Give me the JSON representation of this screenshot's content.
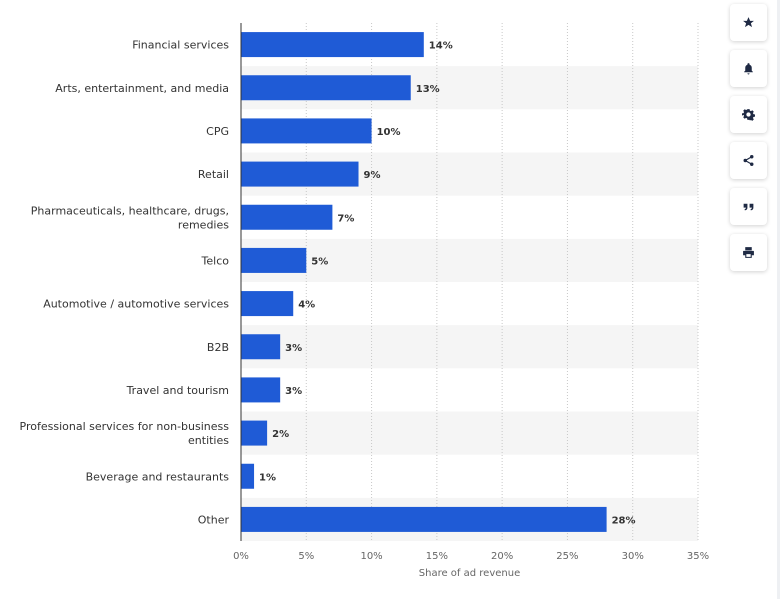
{
  "colors": {
    "bar": "#1f5bd6",
    "stripe": "#f5f5f5",
    "grid": "#c8c8c8",
    "icon": "#1f2a44"
  },
  "chart_data": {
    "type": "bar",
    "orientation": "horizontal",
    "categories": [
      "Financial services",
      "Arts, entertainment, and media",
      "CPG",
      "Retail",
      "Pharmaceuticals, healthcare, drugs, remedies",
      "Telco",
      "Automotive / automotive services",
      "B2B",
      "Travel and tourism",
      "Professional services for non-business entities",
      "Beverage and restaurants",
      "Other"
    ],
    "category_lines": [
      [
        "Financial services"
      ],
      [
        "Arts, entertainment, and media"
      ],
      [
        "CPG"
      ],
      [
        "Retail"
      ],
      [
        "Pharmaceuticals, healthcare, drugs,",
        "remedies"
      ],
      [
        "Telco"
      ],
      [
        "Automotive / automotive services"
      ],
      [
        "B2B"
      ],
      [
        "Travel and tourism"
      ],
      [
        "Professional services for non-business",
        "entities"
      ],
      [
        "Beverage and restaurants"
      ],
      [
        "Other"
      ]
    ],
    "values": [
      14,
      13,
      10,
      9,
      7,
      5,
      4,
      3,
      3,
      2,
      1,
      28
    ],
    "value_labels": [
      "14%",
      "13%",
      "10%",
      "9%",
      "7%",
      "5%",
      "4%",
      "3%",
      "3%",
      "2%",
      "1%",
      "28%"
    ],
    "xlim": [
      0,
      35
    ],
    "xticks": [
      0,
      5,
      10,
      15,
      20,
      25,
      30,
      35
    ],
    "xtick_labels": [
      "0%",
      "5%",
      "10%",
      "15%",
      "20%",
      "25%",
      "30%",
      "35%"
    ],
    "xlabel": "Share of ad revenue",
    "ylabel": "",
    "title": "",
    "grid": true
  },
  "toolbar": {
    "buttons": [
      {
        "name": "favorite",
        "icon": "star-icon"
      },
      {
        "name": "notification",
        "icon": "bell-icon"
      },
      {
        "name": "settings",
        "icon": "gear-icon"
      },
      {
        "name": "share",
        "icon": "share-icon"
      },
      {
        "name": "cite",
        "icon": "quote-icon"
      },
      {
        "name": "print",
        "icon": "print-icon"
      }
    ]
  }
}
